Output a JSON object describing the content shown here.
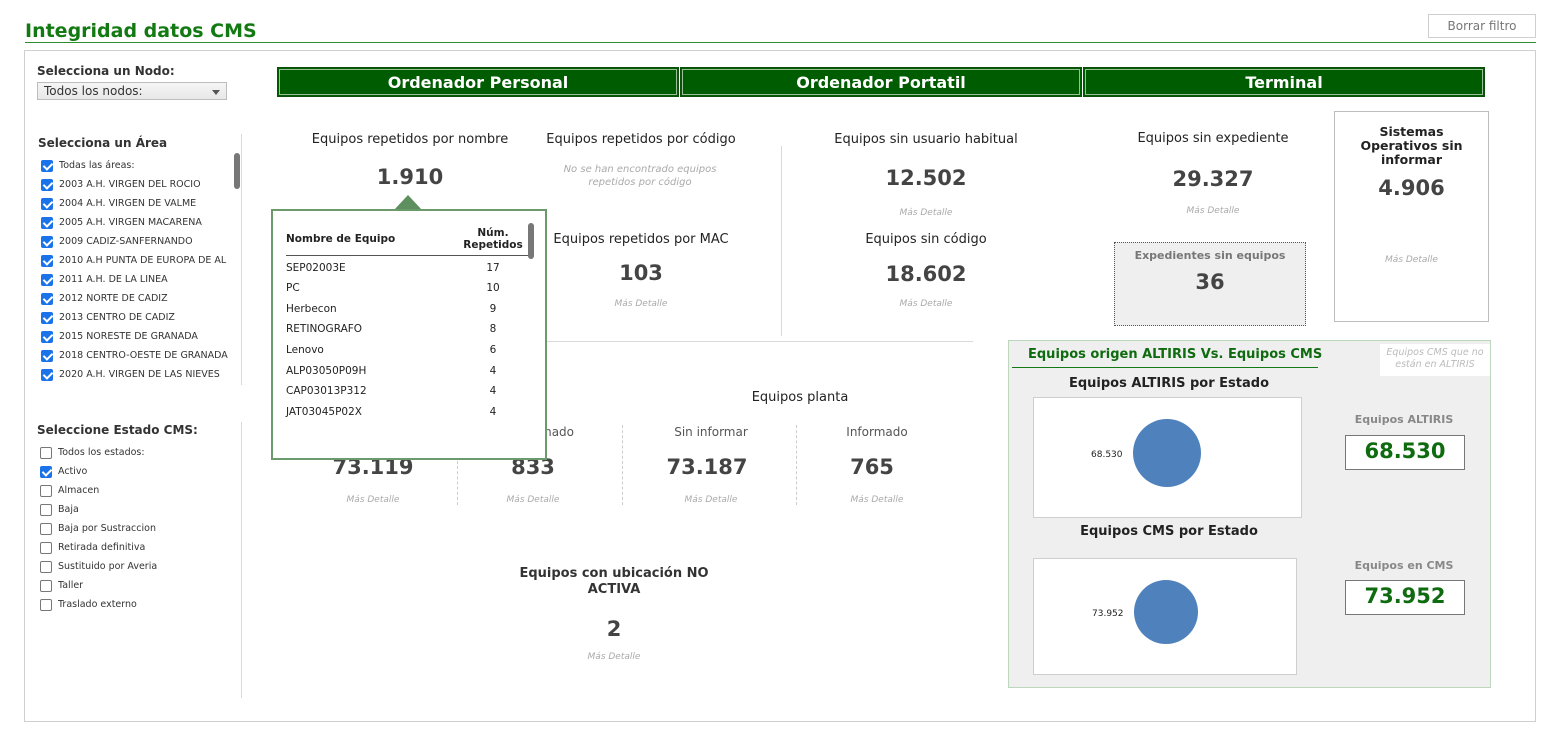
{
  "page": {
    "title": "Integridad datos CMS",
    "clear_filter": "Borrar filtro"
  },
  "filters": {
    "node_label": "Selecciona un Nodo:",
    "node_value": "Todos los nodos:",
    "area_label": "Selecciona un Área",
    "areas": [
      {
        "label": "Todas las áreas:",
        "checked": true
      },
      {
        "label": "2003 A.H. VIRGEN DEL ROCIO",
        "checked": true
      },
      {
        "label": "2004 A.H. VIRGEN DE VALME",
        "checked": true
      },
      {
        "label": "2005 A.H. VIRGEN MACARENA",
        "checked": true
      },
      {
        "label": "2009 CADIZ-SANFERNANDO",
        "checked": true
      },
      {
        "label": "2010 A.H PUNTA DE EUROPA DE AL",
        "checked": true
      },
      {
        "label": "2011 A.H. DE LA LINEA",
        "checked": true
      },
      {
        "label": "2012 NORTE DE CADIZ",
        "checked": true
      },
      {
        "label": "2013 CENTRO DE CADIZ",
        "checked": true
      },
      {
        "label": "2015 NORESTE DE GRANADA",
        "checked": true
      },
      {
        "label": "2018 CENTRO-OESTE DE GRANADA",
        "checked": true
      },
      {
        "label": "2020 A.H. VIRGEN DE LAS NIEVES",
        "checked": true
      }
    ],
    "status_label": "Seleccione Estado CMS:",
    "statuses": [
      {
        "label": "Todos los estados:",
        "checked": false
      },
      {
        "label": "Activo",
        "checked": true
      },
      {
        "label": "Almacen",
        "checked": false
      },
      {
        "label": "Baja",
        "checked": false
      },
      {
        "label": "Baja por Sustraccion",
        "checked": false
      },
      {
        "label": "Retirada definitiva",
        "checked": false
      },
      {
        "label": "Sustituido por Averia",
        "checked": false
      },
      {
        "label": "Taller",
        "checked": false
      },
      {
        "label": "Traslado externo",
        "checked": false
      }
    ]
  },
  "tabs": [
    "Ordenador Personal",
    "Ordenador Portatil",
    "Terminal"
  ],
  "kpis": {
    "rep_nombre": {
      "title": "Equipos repetidos por nombre",
      "value": "1.910"
    },
    "rep_codigo": {
      "title": "Equipos repetidos por código",
      "empty": "No se han encontrado equipos repetidos por código"
    },
    "rep_mac": {
      "title": "Equipos repetidos por MAC",
      "value": "103",
      "more": "Más Detalle"
    },
    "sin_usuario": {
      "title": "Equipos sin usuario habitual",
      "value": "12.502",
      "more": "Más Detalle"
    },
    "sin_codigo": {
      "title": "Equipos sin código",
      "value": "18.602",
      "more": "Más Detalle"
    },
    "sin_expediente": {
      "title": "Equipos sin expediente",
      "value": "29.327",
      "more": "Más Detalle"
    },
    "exp_sin_equipos": {
      "title": "Expedientes sin equipos",
      "value": "36"
    },
    "so_sin_informar": {
      "title": "Sistemas Operativos sin informar",
      "value": "4.906",
      "more": "Más Detalle"
    },
    "planta": {
      "title": "Equipos planta",
      "cols": [
        {
          "label": "",
          "value": "73.119",
          "more": "Más Detalle"
        },
        {
          "label": "mado",
          "value": "833",
          "more": "Más Detalle"
        },
        {
          "label": "Sin informar",
          "value": "73.187",
          "more": "Más Detalle"
        },
        {
          "label": "Informado",
          "value": "765",
          "more": "Más Detalle"
        }
      ]
    },
    "no_activa": {
      "title": "Equipos con ubicación NO ACTIVA",
      "value": "2",
      "more": "Más Detalle"
    }
  },
  "popup": {
    "col_name": "Nombre de Equipo",
    "col_count": "Núm. Repetidos",
    "rows": [
      {
        "name": "SEP02003E",
        "count": "17"
      },
      {
        "name": "PC",
        "count": "10"
      },
      {
        "name": "Herbecon",
        "count": "9"
      },
      {
        "name": "RETINOGRAFO",
        "count": "8"
      },
      {
        "name": "Lenovo",
        "count": "6"
      },
      {
        "name": "ALP03050P09H",
        "count": "4"
      },
      {
        "name": "CAP03013P312",
        "count": "4"
      },
      {
        "name": "JAT03045P02X",
        "count": "4"
      }
    ]
  },
  "altiris": {
    "header": "Equipos origen ALTIRIS Vs. Equipos CMS",
    "note": "Equipos CMS que no están en ALTIRIS",
    "chart1_title": "Equipos ALTIRIS por Estado",
    "chart1_label": "68.530",
    "box1_title": "Equipos ALTIRIS",
    "box1_value": "68.530",
    "chart2_title": "Equipos CMS por Estado",
    "chart2_label": "73.952",
    "box2_title": "Equipos en CMS",
    "box2_value": "73.952",
    "pie_color": "#4f81bd"
  }
}
